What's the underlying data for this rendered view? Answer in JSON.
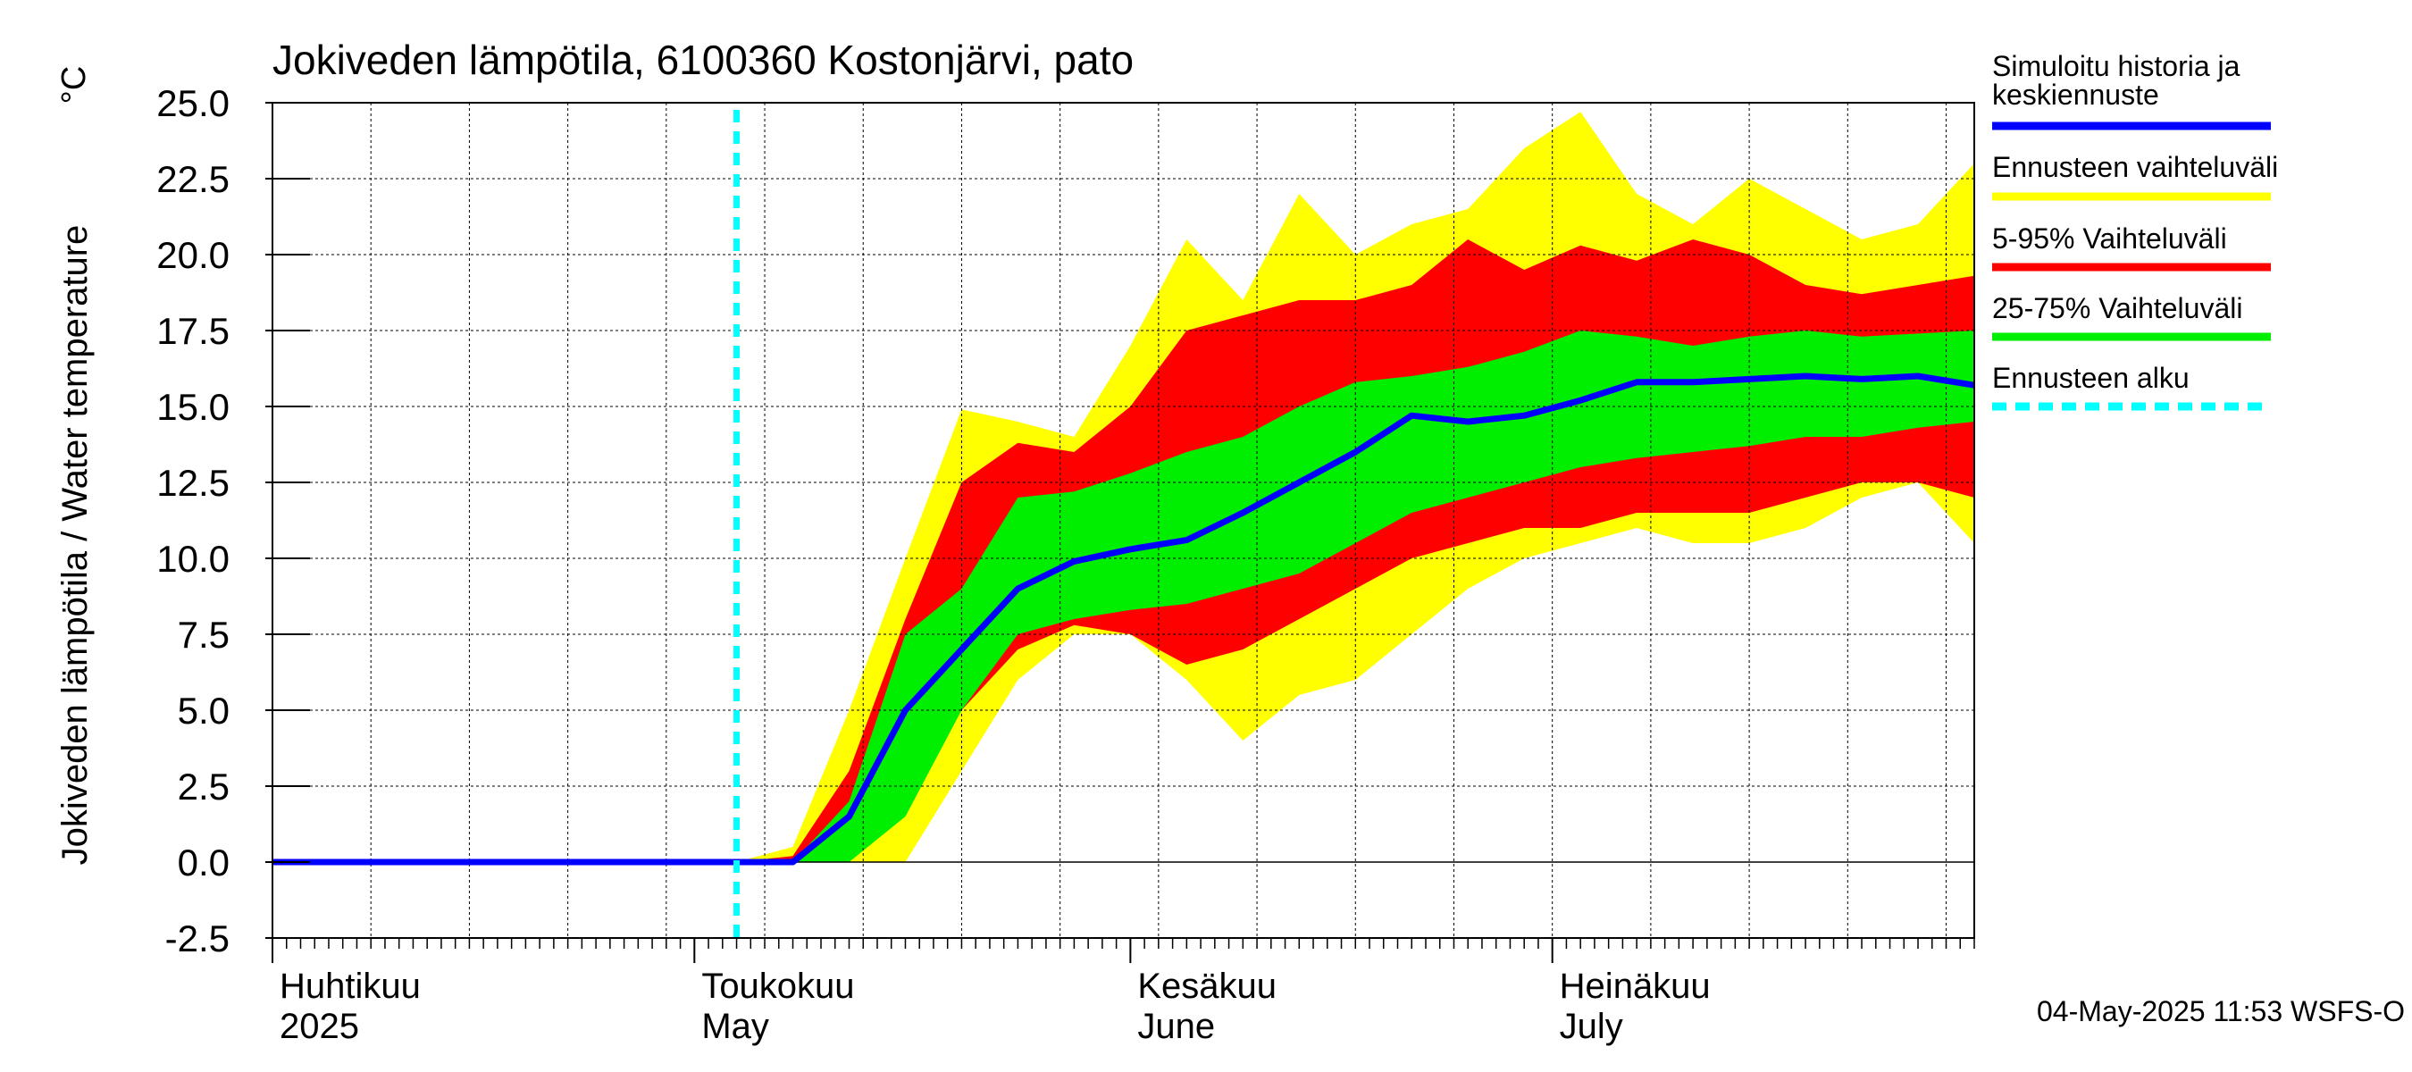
{
  "chart_data": {
    "type": "area",
    "title": "Jokiveden lämpötila, 6100360 Kostonjärvi, pato",
    "ylabel": "Jokiveden lämpötila / Water temperature",
    "yunit": "°C",
    "ylim": [
      -2.5,
      25.0
    ],
    "yticks": [
      "25.0",
      "22.5",
      "20.0",
      "17.5",
      "15.0",
      "12.5",
      "10.0",
      "7.5",
      "5.0",
      "2.5",
      "0.0",
      "-2.5"
    ],
    "xlim": [
      "2025-04-01",
      "2025-07-31"
    ],
    "grid": true,
    "month_labels": [
      {
        "date": "2025-04-01",
        "fi": "Huhtikuu",
        "en": "2025"
      },
      {
        "date": "2025-05-01",
        "fi": "Toukokuu",
        "en": "May"
      },
      {
        "date": "2025-06-01",
        "fi": "Kesäkuu",
        "en": "June"
      },
      {
        "date": "2025-07-01",
        "fi": "Heinäkuu",
        "en": "July"
      }
    ],
    "forecast_start": "2025-05-04",
    "x": [
      "2025-04-01",
      "2025-05-04",
      "2025-05-08",
      "2025-05-12",
      "2025-05-16",
      "2025-05-20",
      "2025-05-24",
      "2025-05-28",
      "2025-06-01",
      "2025-06-05",
      "2025-06-09",
      "2025-06-13",
      "2025-06-17",
      "2025-06-21",
      "2025-06-25",
      "2025-06-29",
      "2025-07-03",
      "2025-07-07",
      "2025-07-11",
      "2025-07-15",
      "2025-07-19",
      "2025-07-23",
      "2025-07-27",
      "2025-07-31"
    ],
    "series": [
      {
        "name": "Simuloitu historia ja keskiennuste",
        "role": "median",
        "color": "#0000ff",
        "values": [
          0.0,
          0.0,
          0.0,
          1.5,
          5.0,
          7.0,
          9.0,
          9.9,
          10.3,
          10.6,
          11.5,
          12.5,
          13.5,
          14.7,
          14.5,
          14.7,
          15.2,
          15.8,
          15.8,
          15.9,
          16.0,
          15.9,
          16.0,
          15.7
        ]
      },
      {
        "name": "Ennusteen vaihteluväli",
        "role": "band",
        "color": "#ffff00",
        "upper": [
          0.0,
          0.0,
          0.5,
          5.0,
          10.0,
          14.9,
          14.5,
          14.0,
          17.0,
          20.5,
          18.5,
          22.0,
          20.0,
          21.0,
          21.5,
          23.5,
          24.7,
          22.0,
          21.0,
          22.5,
          21.5,
          20.5,
          21.0,
          23.0
        ],
        "lower": [
          0.0,
          0.0,
          0.0,
          0.0,
          0.0,
          3.0,
          6.0,
          7.5,
          7.5,
          6.0,
          4.0,
          5.5,
          6.0,
          7.5,
          9.0,
          10.0,
          10.5,
          11.0,
          10.5,
          10.5,
          11.0,
          12.0,
          12.5,
          10.5
        ]
      },
      {
        "name": "5-95% Vaihteluväli",
        "role": "band",
        "color": "#ff0000",
        "upper": [
          0.0,
          0.0,
          0.2,
          3.0,
          8.0,
          12.5,
          13.8,
          13.5,
          15.0,
          17.5,
          18.0,
          18.5,
          18.5,
          19.0,
          20.5,
          19.5,
          20.3,
          19.8,
          20.5,
          20.0,
          19.0,
          18.7,
          19.0,
          19.3
        ],
        "lower": [
          0.0,
          0.0,
          0.0,
          0.0,
          2.5,
          5.0,
          7.0,
          7.8,
          7.5,
          6.5,
          7.0,
          8.0,
          9.0,
          10.0,
          10.5,
          11.0,
          11.0,
          11.5,
          11.5,
          11.5,
          12.0,
          12.5,
          12.5,
          12.0
        ]
      },
      {
        "name": "25-75% Vaihteluväli",
        "role": "band",
        "color": "#00ee00",
        "upper": [
          0.0,
          0.0,
          0.0,
          2.0,
          7.5,
          9.0,
          12.0,
          12.2,
          12.8,
          13.5,
          14.0,
          15.0,
          15.8,
          16.0,
          16.3,
          16.8,
          17.5,
          17.3,
          17.0,
          17.3,
          17.5,
          17.3,
          17.4,
          17.5
        ],
        "lower": [
          0.0,
          0.0,
          0.0,
          0.0,
          1.5,
          5.0,
          7.5,
          8.0,
          8.3,
          8.5,
          9.0,
          9.5,
          10.5,
          11.5,
          12.0,
          12.5,
          13.0,
          13.3,
          13.5,
          13.7,
          14.0,
          14.0,
          14.3,
          14.5
        ]
      }
    ],
    "legend": [
      {
        "label": "Simuloitu historia ja keskiennuste",
        "color": "#0000ff",
        "style": "solid"
      },
      {
        "label": "Ennusteen vaihteluväli",
        "color": "#ffff00",
        "style": "solid"
      },
      {
        "label": "5-95% Vaihteluväli",
        "color": "#ff0000",
        "style": "solid"
      },
      {
        "label": "25-75% Vaihteluväli",
        "color": "#00ee00",
        "style": "solid"
      },
      {
        "label": "Ennusteen alku",
        "color": "#00ffff",
        "style": "dashed"
      }
    ],
    "legend_position": "right",
    "footer": "04-May-2025 11:53 WSFS-O"
  }
}
